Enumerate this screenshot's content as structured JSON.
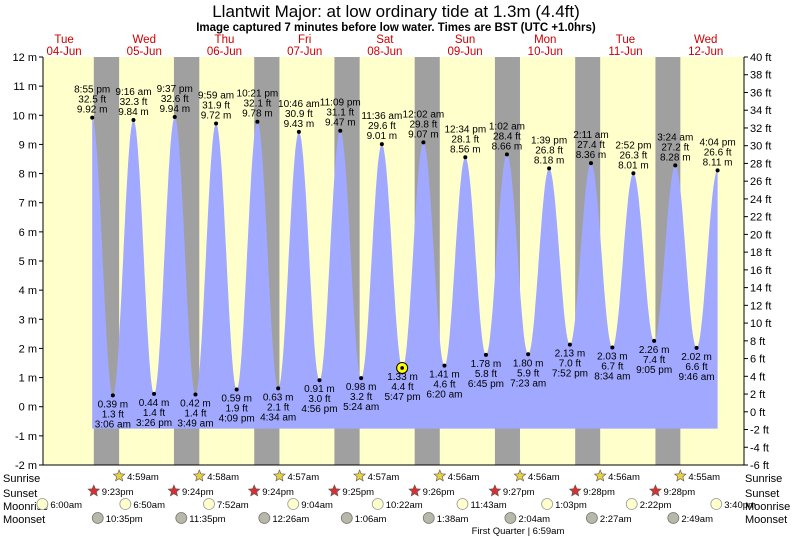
{
  "title": "Llantwit Major: at low  ordinary tide at 1.3m (4.4ft)",
  "subtitle": "Image captured 7 minutes before low water. Times are BST (UTC +1.0hrs)",
  "days": [
    {
      "dow": "Tue",
      "date": "04-Jun"
    },
    {
      "dow": "Wed",
      "date": "05-Jun"
    },
    {
      "dow": "Thu",
      "date": "06-Jun"
    },
    {
      "dow": "Fri",
      "date": "07-Jun"
    },
    {
      "dow": "Sat",
      "date": "08-Jun"
    },
    {
      "dow": "Sun",
      "date": "09-Jun"
    },
    {
      "dow": "Mon",
      "date": "10-Jun"
    },
    {
      "dow": "Tue",
      "date": "11-Jun"
    },
    {
      "dow": "Wed",
      "date": "12-Jun"
    }
  ],
  "row_labels": {
    "sunrise": "Sunrise",
    "sunset": "Sunset",
    "moonrise": "Moonrise",
    "moonset": "Moonset"
  },
  "moon_phase_label": "First Quarter | 6:59am",
  "colors": {
    "water": "#a0a8ff",
    "day_bg": "#ffffcc",
    "night_bg": "#a0a0a0",
    "day_text": "#cc0000",
    "sun_star": "#e8d040",
    "sunset_star": "#d83030",
    "moonrise": "#ffffcc",
    "moonset": "#b8b8a8"
  },
  "chart_data": {
    "type": "area",
    "y_left_unit": "m",
    "y_left_range": [
      -2,
      12
    ],
    "y_left_ticks": [
      "-2 m",
      "-1 m",
      "0 m",
      "1 m",
      "2 m",
      "3 m",
      "4 m",
      "5 m",
      "6 m",
      "7 m",
      "8 m",
      "9 m",
      "10 m",
      "11 m",
      "12 m"
    ],
    "y_right_unit": "ft",
    "y_right_range": [
      -6,
      40
    ],
    "y_right_ticks": [
      "-6 ft",
      "-4 ft",
      "-2 ft",
      "0 ft",
      "2 ft",
      "4 ft",
      "6 ft",
      "8 ft",
      "10 ft",
      "12 ft",
      "14 ft",
      "16 ft",
      "18 ft",
      "20 ft",
      "22 ft",
      "24 ft",
      "26 ft",
      "28 ft",
      "30 ft",
      "32 ft",
      "34 ft",
      "36 ft",
      "38 ft",
      "40 ft"
    ],
    "x_range": [
      "2024-06-04 00:00",
      "2024-06-12 23:59"
    ],
    "chart_floor_m": -0.75,
    "current": {
      "time": "2024-06-08 17:40",
      "height_m": 1.33
    },
    "tides": [
      {
        "type": "high",
        "day": 0,
        "time": "8:55 pm",
        "m": "9.92 m",
        "ft": "32.5 ft",
        "h": 9.92,
        "hour": 20.92
      },
      {
        "type": "low",
        "day": 1,
        "time": "3:06 am",
        "m": "0.39 m",
        "ft": "1.3 ft",
        "h": 0.39,
        "hour": 3.1
      },
      {
        "type": "high",
        "day": 1,
        "time": "9:16 am",
        "m": "9.84 m",
        "ft": "32.3 ft",
        "h": 9.84,
        "hour": 9.27
      },
      {
        "type": "low",
        "day": 1,
        "time": "3:26 pm",
        "m": "0.44 m",
        "ft": "1.4 ft",
        "h": 0.44,
        "hour": 15.43
      },
      {
        "type": "high",
        "day": 1,
        "time": "9:37 pm",
        "m": "9.94 m",
        "ft": "32.6 ft",
        "h": 9.94,
        "hour": 21.62
      },
      {
        "type": "low",
        "day": 2,
        "time": "3:49 am",
        "m": "0.42 m",
        "ft": "1.4 ft",
        "h": 0.42,
        "hour": 3.82
      },
      {
        "type": "high",
        "day": 2,
        "time": "9:59 am",
        "m": "9.72 m",
        "ft": "31.9 ft",
        "h": 9.72,
        "hour": 9.98
      },
      {
        "type": "low",
        "day": 2,
        "time": "4:09 pm",
        "m": "0.59 m",
        "ft": "1.9 ft",
        "h": 0.59,
        "hour": 16.15
      },
      {
        "type": "high",
        "day": 2,
        "time": "10:21 pm",
        "m": "9.78 m",
        "ft": "32.1 ft",
        "h": 9.78,
        "hour": 22.35
      },
      {
        "type": "low",
        "day": 3,
        "time": "4:34 am",
        "m": "0.63 m",
        "ft": "2.1 ft",
        "h": 0.63,
        "hour": 4.57
      },
      {
        "type": "high",
        "day": 3,
        "time": "10:46 am",
        "m": "9.43 m",
        "ft": "30.9 ft",
        "h": 9.43,
        "hour": 10.77
      },
      {
        "type": "low",
        "day": 3,
        "time": "4:56 pm",
        "m": "0.91 m",
        "ft": "3.0 ft",
        "h": 0.91,
        "hour": 16.93
      },
      {
        "type": "high",
        "day": 3,
        "time": "11:09 pm",
        "m": "9.47 m",
        "ft": "31.1 ft",
        "h": 9.47,
        "hour": 23.15
      },
      {
        "type": "low",
        "day": 4,
        "time": "5:24 am",
        "m": "0.98 m",
        "ft": "3.2 ft",
        "h": 0.98,
        "hour": 5.4
      },
      {
        "type": "high",
        "day": 4,
        "time": "11:36 am",
        "m": "9.01 m",
        "ft": "29.6 ft",
        "h": 9.01,
        "hour": 11.6
      },
      {
        "type": "low",
        "day": 4,
        "time": "5:47 pm",
        "m": "1.33 m",
        "ft": "4.4 ft",
        "h": 1.33,
        "hour": 17.78
      },
      {
        "type": "high",
        "day": 5,
        "time": "12:02 am",
        "m": "9.07 m",
        "ft": "29.8 ft",
        "h": 9.07,
        "hour": 0.03
      },
      {
        "type": "low",
        "day": 5,
        "time": "6:20 am",
        "m": "1.41 m",
        "ft": "4.6 ft",
        "h": 1.41,
        "hour": 6.33
      },
      {
        "type": "high",
        "day": 5,
        "time": "12:34 pm",
        "m": "8.56 m",
        "ft": "28.1 ft",
        "h": 8.56,
        "hour": 12.57
      },
      {
        "type": "low",
        "day": 5,
        "time": "6:45 pm",
        "m": "1.78 m",
        "ft": "5.8 ft",
        "h": 1.78,
        "hour": 18.75
      },
      {
        "type": "high",
        "day": 6,
        "time": "1:02 am",
        "m": "8.66 m",
        "ft": "28.4 ft",
        "h": 8.66,
        "hour": 1.03
      },
      {
        "type": "low",
        "day": 6,
        "time": "7:23 am",
        "m": "1.80 m",
        "ft": "5.9 ft",
        "h": 1.8,
        "hour": 7.38
      },
      {
        "type": "high",
        "day": 6,
        "time": "1:39 pm",
        "m": "8.18 m",
        "ft": "26.8 ft",
        "h": 8.18,
        "hour": 13.65
      },
      {
        "type": "low",
        "day": 6,
        "time": "7:52 pm",
        "m": "2.13 m",
        "ft": "7.0 ft",
        "h": 2.13,
        "hour": 19.87
      },
      {
        "type": "high",
        "day": 7,
        "time": "2:11 am",
        "m": "8.36 m",
        "ft": "27.4 ft",
        "h": 8.36,
        "hour": 2.18
      },
      {
        "type": "low",
        "day": 7,
        "time": "8:34 am",
        "m": "2.03 m",
        "ft": "6.7 ft",
        "h": 2.03,
        "hour": 8.57
      },
      {
        "type": "high",
        "day": 7,
        "time": "2:52 pm",
        "m": "8.01 m",
        "ft": "26.3 ft",
        "h": 8.01,
        "hour": 14.87
      },
      {
        "type": "low",
        "day": 7,
        "time": "9:05 pm",
        "m": "2.26 m",
        "ft": "7.4 ft",
        "h": 2.26,
        "hour": 21.08
      },
      {
        "type": "high",
        "day": 8,
        "time": "3:24 am",
        "m": "8.28 m",
        "ft": "27.2 ft",
        "h": 8.28,
        "hour": 3.4
      },
      {
        "type": "low",
        "day": 8,
        "time": "9:46 am",
        "m": "2.02 m",
        "ft": "6.6 ft",
        "h": 2.02,
        "hour": 9.77
      },
      {
        "type": "high",
        "day": 8,
        "time": "4:04 pm",
        "m": "8.11 m",
        "ft": "26.6 ft",
        "h": 8.11,
        "hour": 16.07
      }
    ],
    "nights": [
      {
        "start_day": 0,
        "start_hour": 21.4,
        "end_day": 1,
        "end_hour": 4.98
      },
      {
        "start_day": 1,
        "start_hour": 21.38,
        "end_day": 2,
        "end_hour": 4.97
      },
      {
        "start_day": 2,
        "start_hour": 21.4,
        "end_day": 3,
        "end_hour": 4.95
      },
      {
        "start_day": 3,
        "start_hour": 21.4,
        "end_day": 4,
        "end_hour": 4.95
      },
      {
        "start_day": 4,
        "start_hour": 21.42,
        "end_day": 5,
        "end_hour": 4.93
      },
      {
        "start_day": 5,
        "start_hour": 21.43,
        "end_day": 6,
        "end_hour": 4.93
      },
      {
        "start_day": 6,
        "start_hour": 21.45,
        "end_day": 7,
        "end_hour": 4.93
      },
      {
        "start_day": 7,
        "start_hour": 21.47,
        "end_day": 8,
        "end_hour": 4.92
      }
    ],
    "sunrise": [
      {
        "day": 1,
        "label": "4:59am",
        "hour": 4.98
      },
      {
        "day": 2,
        "label": "4:58am",
        "hour": 4.97
      },
      {
        "day": 3,
        "label": "4:57am",
        "hour": 4.95
      },
      {
        "day": 4,
        "label": "4:57am",
        "hour": 4.95
      },
      {
        "day": 5,
        "label": "4:56am",
        "hour": 4.93
      },
      {
        "day": 6,
        "label": "4:56am",
        "hour": 4.93
      },
      {
        "day": 7,
        "label": "4:56am",
        "hour": 4.93
      },
      {
        "day": 8,
        "label": "4:55am",
        "hour": 4.92
      }
    ],
    "sunset": [
      {
        "day": 0,
        "label": "9:23pm",
        "hour": 21.4
      },
      {
        "day": 1,
        "label": "9:24pm",
        "hour": 21.38
      },
      {
        "day": 2,
        "label": "9:24pm",
        "hour": 21.4
      },
      {
        "day": 3,
        "label": "9:25pm",
        "hour": 21.4
      },
      {
        "day": 4,
        "label": "9:26pm",
        "hour": 21.42
      },
      {
        "day": 5,
        "label": "9:27pm",
        "hour": 21.43
      },
      {
        "day": 6,
        "label": "9:28pm",
        "hour": 21.45
      },
      {
        "day": 7,
        "label": "9:28pm",
        "hour": 21.47
      }
    ],
    "moonrise": [
      {
        "day": 0,
        "label": "6:00am",
        "hour": 6.0
      },
      {
        "day": 1,
        "label": "6:50am",
        "hour": 6.83
      },
      {
        "day": 2,
        "label": "7:52am",
        "hour": 7.87
      },
      {
        "day": 3,
        "label": "9:04am",
        "hour": 9.07
      },
      {
        "day": 4,
        "label": "10:22am",
        "hour": 10.37
      },
      {
        "day": 5,
        "label": "11:43am",
        "hour": 11.72
      },
      {
        "day": 6,
        "label": "1:03pm",
        "hour": 13.05
      },
      {
        "day": 7,
        "label": "2:22pm",
        "hour": 14.37
      },
      {
        "day": 8,
        "label": "3:40pm",
        "hour": 15.67
      }
    ],
    "moonset": [
      {
        "day": 0,
        "label": "10:35pm",
        "hour": 22.58
      },
      {
        "day": 1,
        "label": "11:35pm",
        "hour": 23.58
      },
      {
        "day": 3,
        "label": "12:26am",
        "hour": 0.43
      },
      {
        "day": 4,
        "label": "1:06am",
        "hour": 1.1
      },
      {
        "day": 5,
        "label": "1:38am",
        "hour": 1.63
      },
      {
        "day": 6,
        "label": "2:04am",
        "hour": 2.07
      },
      {
        "day": 7,
        "label": "2:27am",
        "hour": 2.45
      },
      {
        "day": 8,
        "label": "2:49am",
        "hour": 2.82
      }
    ]
  }
}
